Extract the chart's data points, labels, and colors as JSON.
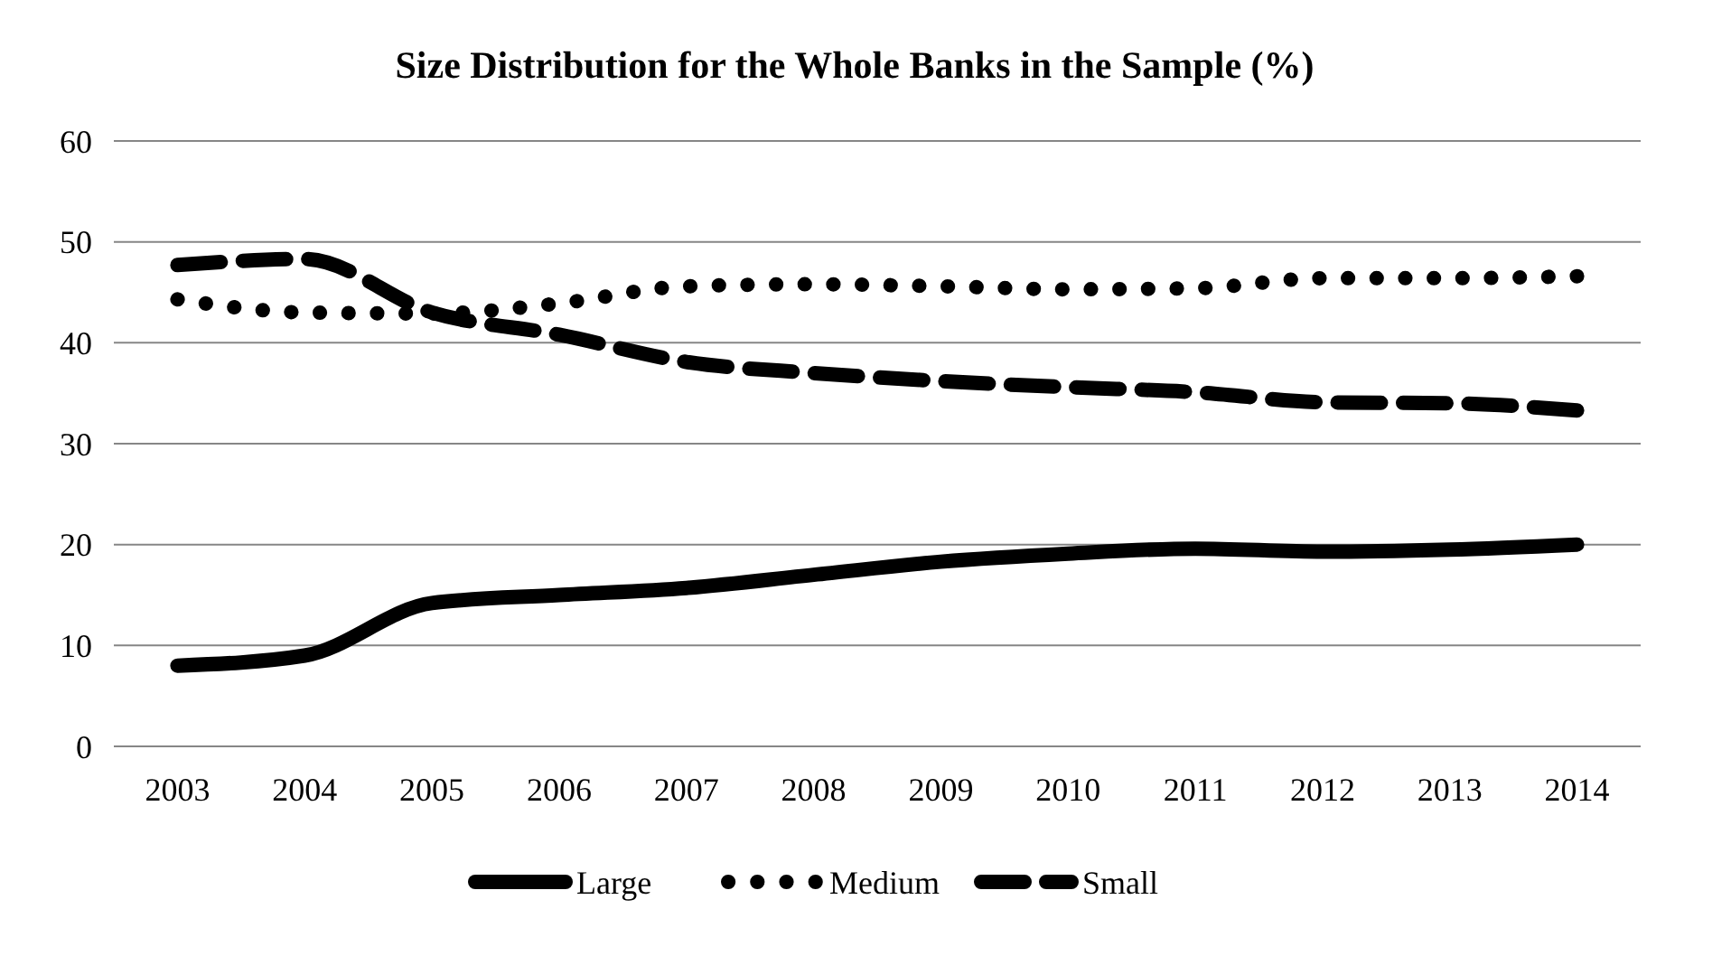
{
  "chart_data": {
    "type": "line",
    "title": "Size Distribution for the Whole Banks in the Sample (%)",
    "categories": [
      "2003",
      "2004",
      "2005",
      "2006",
      "2007",
      "2008",
      "2009",
      "2010",
      "2011",
      "2012",
      "2013",
      "2014"
    ],
    "series": [
      {
        "name": "Large",
        "color": "#000000",
        "line_style": "solid",
        "values": [
          8,
          9,
          14.2,
          15,
          15.7,
          17,
          18.3,
          19.1,
          19.6,
          19.3,
          19.5,
          20
        ]
      },
      {
        "name": "Medium",
        "color": "#000000",
        "line_style": "dotted",
        "values": [
          44.3,
          43,
          42.9,
          43.9,
          45.6,
          45.8,
          45.6,
          45.3,
          45.4,
          46.4,
          46.4,
          46.6
        ]
      },
      {
        "name": "Small",
        "color": "#000000",
        "line_style": "dashed",
        "values": [
          47.7,
          48.3,
          43,
          40.8,
          38.1,
          37,
          36.2,
          35.6,
          35.1,
          34.1,
          34,
          33.3
        ]
      }
    ],
    "ylim": [
      0,
      60
    ],
    "yticks": [
      0,
      10,
      20,
      30,
      40,
      50,
      60
    ],
    "grid": "y",
    "legend": "bottom"
  }
}
